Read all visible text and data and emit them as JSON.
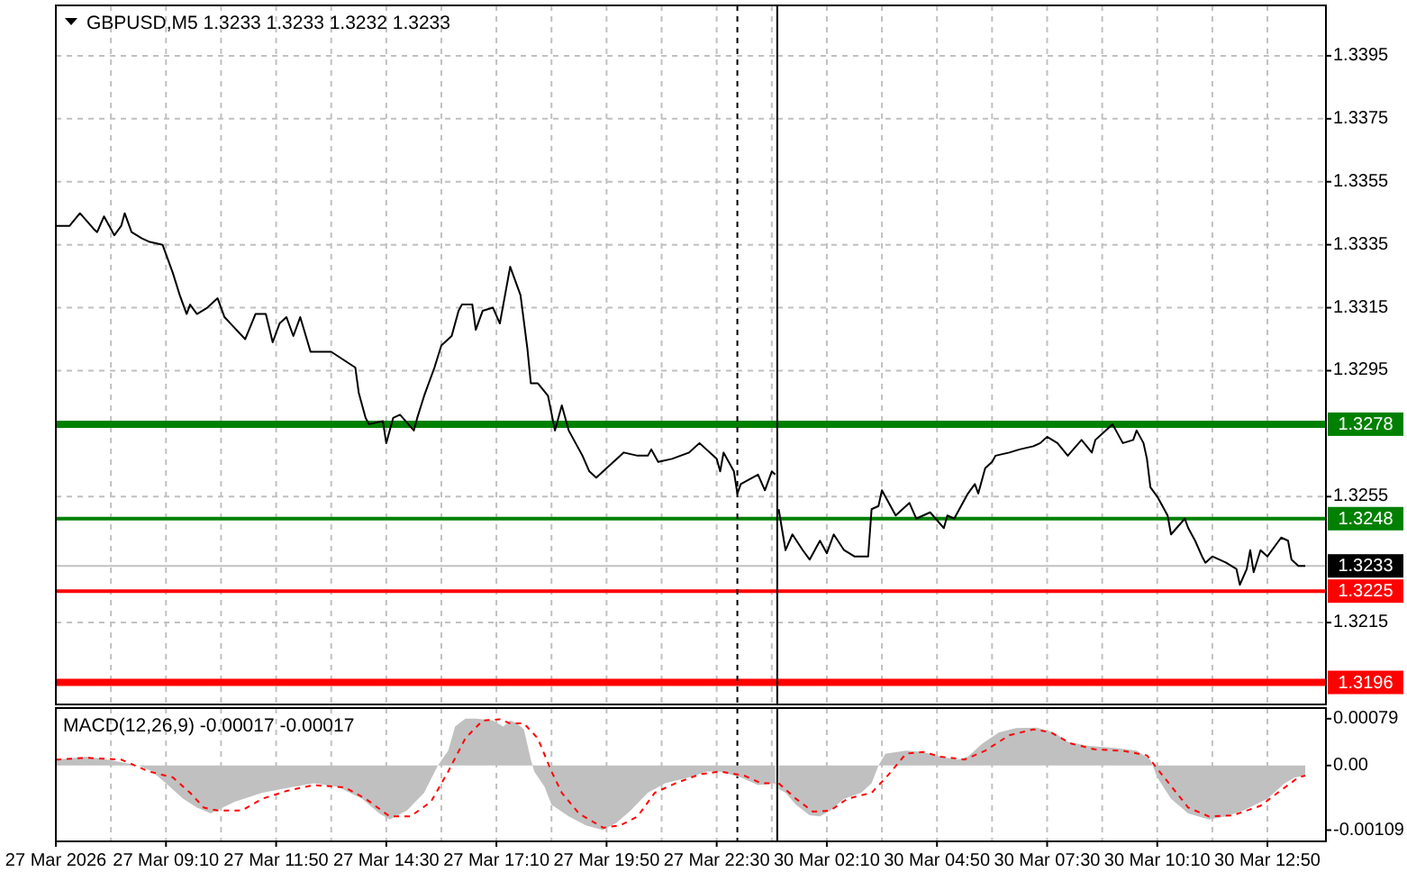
{
  "chart_data": [
    {
      "type": "line",
      "title": "GBPUSD,M5 1.3233 1.3233 1.3232 1.3233",
      "xlim": [
        "2026-03-27T06:30",
        "2026-03-27T23:58"
      ],
      "ylim": [
        1.3189,
        1.3411
      ],
      "xticks": [
        {
          "value": "2026-03-27T07:50",
          "label": null
        },
        {
          "value": "2026-03-27T09:10",
          "label": null
        },
        {
          "value": "2026-03-27T10:30",
          "label": null
        },
        {
          "value": "2026-03-27T11:50",
          "label": null
        },
        {
          "value": "2026-03-27T13:10",
          "label": null
        },
        {
          "value": "2026-03-27T14:30",
          "label": null
        },
        {
          "value": "2026-03-27T15:50",
          "label": null
        },
        {
          "value": "2026-03-27T17:10",
          "label": null
        },
        {
          "value": "2026-03-27T18:30",
          "label": null
        },
        {
          "value": "2026-03-27T19:50",
          "label": null
        },
        {
          "value": "2026-03-27T21:10",
          "label": null
        },
        {
          "value": "2026-03-27T22:30",
          "label": null
        },
        {
          "value": "2026-03-27T23:50",
          "label": null
        }
      ],
      "yticks": [
        {
          "value": 1.3215,
          "label": null
        },
        {
          "value": 1.3255,
          "label": null
        },
        {
          "value": 1.3295,
          "label": null
        },
        {
          "value": 1.3315,
          "label": null
        },
        {
          "value": 1.3335,
          "label": null
        },
        {
          "value": 1.3355,
          "label": null
        },
        {
          "value": 1.3375,
          "label": null
        },
        {
          "value": 1.3395,
          "label": null
        }
      ],
      "tick_labels": false,
      "grid": true,
      "ref_lines": [
        {
          "axis": "y",
          "value": 1.3278,
          "color": "#008000"
        },
        {
          "axis": "y",
          "value": 1.3248,
          "color": "#008000"
        },
        {
          "axis": "y",
          "value": 1.3233,
          "color": "#c0c0c0"
        },
        {
          "axis": "y",
          "value": 1.3225,
          "color": "#ff0000"
        },
        {
          "axis": "y",
          "value": 1.3196,
          "color": "#ff0000"
        },
        {
          "axis": "x",
          "value": "2026-03-27T23:00",
          "color": "#000000",
          "line_style": "dashed"
        }
      ],
      "series": [
        {
          "color": "#000000",
          "x": [
            "2026-03-27T06:30",
            "2026-03-27T06:50",
            "2026-03-27T07:05",
            "2026-03-27T07:25",
            "2026-03-27T07:30",
            "2026-03-27T07:40",
            "2026-03-27T07:55",
            "2026-03-27T08:05",
            "2026-03-27T08:10",
            "2026-03-27T08:20",
            "2026-03-27T08:35",
            "2026-03-27T08:45",
            "2026-03-27T09:05",
            "2026-03-27T09:20",
            "2026-03-27T09:30",
            "2026-03-27T09:40",
            "2026-03-27T09:45",
            "2026-03-27T09:55",
            "2026-03-27T10:10",
            "2026-03-27T10:25",
            "2026-03-27T10:35",
            "2026-03-27T11:05",
            "2026-03-27T11:20",
            "2026-03-27T11:35",
            "2026-03-27T11:45",
            "2026-03-27T11:55",
            "2026-03-27T12:05",
            "2026-03-27T12:15",
            "2026-03-27T12:25",
            "2026-03-27T12:40",
            "2026-03-27T13:10",
            "2026-03-27T13:45",
            "2026-03-27T13:50",
            "2026-03-27T14:00",
            "2026-03-27T14:05",
            "2026-03-27T14:25",
            "2026-03-27T14:30",
            "2026-03-27T14:40",
            "2026-03-27T14:50",
            "2026-03-27T15:10",
            "2026-03-27T15:15",
            "2026-03-27T15:25",
            "2026-03-27T15:40",
            "2026-03-27T15:50",
            "2026-03-27T16:05",
            "2026-03-27T16:15",
            "2026-03-27T16:20",
            "2026-03-27T16:35",
            "2026-03-27T16:40",
            "2026-03-27T16:50",
            "2026-03-27T17:05",
            "2026-03-27T17:15",
            "2026-03-27T17:25",
            "2026-03-27T17:30",
            "2026-03-27T17:45",
            "2026-03-27T17:55",
            "2026-03-27T18:00",
            "2026-03-27T18:10",
            "2026-03-27T18:25",
            "2026-03-27T18:35",
            "2026-03-27T18:45",
            "2026-03-27T18:55",
            "2026-03-27T19:15",
            "2026-03-27T19:25",
            "2026-03-27T19:35",
            "2026-03-27T20:00",
            "2026-03-27T20:15",
            "2026-03-27T20:35",
            "2026-03-27T20:50",
            "2026-03-27T20:55",
            "2026-03-27T21:05",
            "2026-03-27T21:25",
            "2026-03-27T21:50",
            "2026-03-27T22:05",
            "2026-03-27T22:30",
            "2026-03-27T22:35",
            "2026-03-27T22:40",
            "2026-03-27T22:55",
            "2026-03-27T23:00",
            "2026-03-27T23:05",
            "2026-03-27T23:30",
            "2026-03-27T23:40",
            "2026-03-27T23:50",
            "2026-03-27T23:55"
          ],
          "values": [
            1.3341,
            1.3341,
            1.3345,
            1.334,
            1.3339,
            1.3344,
            1.3338,
            1.3341,
            1.3345,
            1.3339,
            1.3337,
            1.3336,
            1.3335,
            1.3326,
            1.3319,
            1.3313,
            1.3316,
            1.3313,
            1.3315,
            1.3318,
            1.3312,
            1.3305,
            1.3313,
            1.3313,
            1.3304,
            1.331,
            1.3312,
            1.3306,
            1.3312,
            1.3301,
            1.3301,
            1.3296,
            1.3288,
            1.328,
            1.3278,
            1.3279,
            1.3272,
            1.328,
            1.3281,
            1.3276,
            1.328,
            1.3287,
            1.3296,
            1.3303,
            1.3306,
            1.3314,
            1.3316,
            1.3316,
            1.3308,
            1.3314,
            1.3315,
            1.331,
            1.3322,
            1.3328,
            1.3319,
            1.3302,
            1.3291,
            1.3291,
            1.3287,
            1.3276,
            1.3284,
            1.3276,
            1.3268,
            1.3263,
            1.3261,
            1.3266,
            1.3269,
            1.3268,
            1.3268,
            1.327,
            1.3266,
            1.3267,
            1.3269,
            1.3272,
            1.3267,
            1.3263,
            1.3269,
            1.3263,
            1.3256,
            1.3259,
            1.3262,
            1.3257,
            1.3263,
            1.3262
          ]
        }
      ]
    },
    {
      "type": "line",
      "xlim": [
        "2026-03-30T00:58",
        "2026-03-30T14:15"
      ],
      "ylim": [
        1.3189,
        1.3411
      ],
      "xticks": [
        {
          "value": "2026-03-30T02:10",
          "label": null
        },
        {
          "value": "2026-03-30T03:30",
          "label": null
        },
        {
          "value": "2026-03-30T04:50",
          "label": null
        },
        {
          "value": "2026-03-30T06:10",
          "label": null
        },
        {
          "value": "2026-03-30T07:30",
          "label": null
        },
        {
          "value": "2026-03-30T08:50",
          "label": null
        },
        {
          "value": "2026-03-30T10:10",
          "label": null
        },
        {
          "value": "2026-03-30T11:30",
          "label": null
        },
        {
          "value": "2026-03-30T12:50",
          "label": null
        }
      ],
      "yticks": [
        1.3215,
        1.3255,
        1.3295,
        1.3315,
        1.3335,
        1.3355,
        1.3375,
        1.3395
      ],
      "tick_labels": "y",
      "grid": true,
      "ref_lines": [
        {
          "axis": "y",
          "value": 1.3278,
          "label": "1.3278",
          "color": "#008000"
        },
        {
          "axis": "y",
          "value": 1.3248,
          "label": "1.3248",
          "color": "#008000"
        },
        {
          "axis": "y",
          "value": 1.3233,
          "label": "1.3233",
          "color": "#c0c0c0"
        },
        {
          "axis": "y",
          "value": 1.3225,
          "label": "1.3225",
          "color": "#ff0000"
        },
        {
          "axis": "y",
          "value": 1.3196,
          "label": "1.3196",
          "color": "#ff0000"
        }
      ],
      "series": [
        {
          "color": "#000000",
          "x": [
            "2026-03-30T01:00",
            "2026-03-30T01:10",
            "2026-03-30T01:20",
            "2026-03-30T01:35",
            "2026-03-30T01:45",
            "2026-03-30T02:00",
            "2026-03-30T02:10",
            "2026-03-30T02:20",
            "2026-03-30T02:35",
            "2026-03-30T02:50",
            "2026-03-30T03:10",
            "2026-03-30T03:15",
            "2026-03-30T03:25",
            "2026-03-30T03:30",
            "2026-03-30T03:40",
            "2026-03-30T03:50",
            "2026-03-30T04:10",
            "2026-03-30T04:20",
            "2026-03-30T04:40",
            "2026-03-30T05:00",
            "2026-03-30T05:05",
            "2026-03-30T05:15",
            "2026-03-30T05:35",
            "2026-03-30T05:45",
            "2026-03-30T05:50",
            "2026-03-30T06:00",
            "2026-03-30T06:10",
            "2026-03-30T06:15",
            "2026-03-30T06:35",
            "2026-03-30T06:50",
            "2026-03-30T07:10",
            "2026-03-30T07:20",
            "2026-03-30T07:30",
            "2026-03-30T07:45",
            "2026-03-30T08:00",
            "2026-03-30T08:20",
            "2026-03-30T08:35",
            "2026-03-30T08:40",
            "2026-03-30T08:50",
            "2026-03-30T09:00",
            "2026-03-30T09:05",
            "2026-03-30T09:10",
            "2026-03-30T09:20",
            "2026-03-30T09:35",
            "2026-03-30T09:40",
            "2026-03-30T09:50",
            "2026-03-30T09:55",
            "2026-03-30T10:00",
            "2026-03-30T10:10",
            "2026-03-30T10:20",
            "2026-03-30T10:25",
            "2026-03-30T10:30",
            "2026-03-30T10:50",
            "2026-03-30T10:55",
            "2026-03-30T11:05",
            "2026-03-30T11:15",
            "2026-03-30T11:20",
            "2026-03-30T11:30",
            "2026-03-30T11:50",
            "2026-03-30T12:05",
            "2026-03-30T12:10",
            "2026-03-30T12:20",
            "2026-03-30T12:25",
            "2026-03-30T12:30",
            "2026-03-30T12:40",
            "2026-03-30T12:50",
            "2026-03-30T13:10",
            "2026-03-30T13:20",
            "2026-03-30T13:25",
            "2026-03-30T13:35",
            "2026-03-30T13:45"
          ],
          "values": [
            1.3251,
            1.3238,
            1.3243,
            1.3238,
            1.3235,
            1.3241,
            1.3237,
            1.3243,
            1.3238,
            1.3236,
            1.3236,
            1.3251,
            1.3252,
            1.3257,
            1.3253,
            1.3249,
            1.3253,
            1.3248,
            1.325,
            1.3245,
            1.3249,
            1.3248,
            1.3256,
            1.3259,
            1.3256,
            1.3264,
            1.3266,
            1.3268,
            1.3269,
            1.327,
            1.3271,
            1.3272,
            1.3274,
            1.3272,
            1.3268,
            1.3273,
            1.3269,
            1.3273,
            1.3275,
            1.3277,
            1.3278,
            1.3276,
            1.3272,
            1.3273,
            1.3276,
            1.3272,
            1.3267,
            1.3258,
            1.3255,
            1.3251,
            1.3249,
            1.3243,
            1.3248,
            1.3245,
            1.3241,
            1.3236,
            1.3234,
            1.3236,
            1.3234,
            1.3232,
            1.3227,
            1.3232,
            1.3238,
            1.3231,
            1.3238,
            1.3236,
            1.3242,
            1.3241,
            1.3235,
            1.3233,
            1.3233
          ]
        }
      ]
    },
    {
      "type": "area",
      "title": "MACD(12,26,9) -0.00017 -0.00017",
      "xlim": [
        "2026-03-27T06:30",
        "2026-03-27T23:58"
      ],
      "ylim": [
        -0.00128,
        0.00097
      ],
      "xticks": [
        {
          "value": "2026-03-27T06:30",
          "label": "27 Mar 2026"
        },
        {
          "value": "2026-03-27T07:50",
          "label": null
        },
        {
          "value": "2026-03-27T09:10",
          "label": "27 Mar 09:10"
        },
        {
          "value": "2026-03-27T10:30",
          "label": null
        },
        {
          "value": "2026-03-27T11:50",
          "label": "27 Mar 11:50"
        },
        {
          "value": "2026-03-27T13:10",
          "label": null
        },
        {
          "value": "2026-03-27T14:30",
          "label": "27 Mar 14:30"
        },
        {
          "value": "2026-03-27T15:50",
          "label": null
        },
        {
          "value": "2026-03-27T17:10",
          "label": "27 Mar 17:10"
        },
        {
          "value": "2026-03-27T18:30",
          "label": null
        },
        {
          "value": "2026-03-27T19:50",
          "label": "27 Mar 19:50"
        },
        {
          "value": "2026-03-27T21:10",
          "label": null
        },
        {
          "value": "2026-03-27T22:30",
          "label": "27 Mar 22:30"
        },
        {
          "value": "2026-03-27T23:50",
          "label": null
        }
      ],
      "tick_labels": "x",
      "grid": "x",
      "line_style": "dashed",
      "ref_lines": [
        {
          "axis": "x",
          "value": "2026-03-27T23:00",
          "color": "#000000",
          "line_style": "dashed"
        }
      ],
      "series": [
        {
          "color": "#c0c0c0",
          "x": [
            "2026-03-27T06:30",
            "2026-03-27T07:15",
            "2026-03-27T07:45",
            "2026-03-27T08:30",
            "2026-03-27T08:50",
            "2026-03-27T09:10",
            "2026-03-27T09:35",
            "2026-03-27T09:55",
            "2026-03-27T10:15",
            "2026-03-27T10:50",
            "2026-03-27T11:30",
            "2026-03-27T12:15",
            "2026-03-27T12:45",
            "2026-03-27T13:20",
            "2026-03-27T13:55",
            "2026-03-27T14:20",
            "2026-03-27T14:35",
            "2026-03-27T15:00",
            "2026-03-27T15:25",
            "2026-03-27T15:45",
            "2026-03-27T16:00",
            "2026-03-27T16:10",
            "2026-03-27T16:25",
            "2026-03-27T16:40",
            "2026-03-27T17:05",
            "2026-03-27T17:20",
            "2026-03-27T17:30",
            "2026-03-27T17:40",
            "2026-03-27T17:50",
            "2026-03-27T18:00",
            "2026-03-27T18:05",
            "2026-03-27T18:20",
            "2026-03-27T18:30",
            "2026-03-27T18:55",
            "2026-03-27T19:20",
            "2026-03-27T19:45",
            "2026-03-27T20:05",
            "2026-03-27T20:25",
            "2026-03-27T20:50",
            "2026-03-27T21:15",
            "2026-03-27T21:50",
            "2026-03-27T22:15",
            "2026-03-27T22:35",
            "2026-03-27T23:05",
            "2026-03-27T23:30",
            "2026-03-27T23:55"
          ],
          "values": [
            0.0001,
            0.00015,
            0.0001,
            0,
            -0.0001,
            -0.0003,
            -0.00056,
            -0.00071,
            -0.00081,
            -0.00061,
            -0.00046,
            -0.00036,
            -0.0003,
            -0.00036,
            -0.00056,
            -0.00081,
            -0.00091,
            -0.00076,
            -0.00046,
            0,
            0.00025,
            0.00066,
            0.00079,
            0.00079,
            0.00076,
            0.00066,
            0.00076,
            0.00071,
            0.00061,
            0.0001,
            -0.0001,
            -0.00036,
            -0.00066,
            -0.00086,
            -0.00101,
            -0.00109,
            -0.00096,
            -0.00076,
            -0.00046,
            -0.0003,
            -0.0002,
            -0.0001,
            -0.0001,
            -0.0002,
            -0.00033,
            -0.0003
          ]
        },
        {
          "type": "line",
          "color": "#ff0000",
          "x": [
            "2026-03-27T06:30",
            "2026-03-27T07:15",
            "2026-03-27T08:05",
            "2026-03-27T08:45",
            "2026-03-27T09:20",
            "2026-03-27T09:45",
            "2026-03-27T10:05",
            "2026-03-27T10:25",
            "2026-03-27T11:00",
            "2026-03-27T11:30",
            "2026-03-27T12:05",
            "2026-03-27T12:45",
            "2026-03-27T13:30",
            "2026-03-27T14:00",
            "2026-03-27T14:35",
            "2026-03-27T15:05",
            "2026-03-27T15:35",
            "2026-03-27T16:00",
            "2026-03-27T16:25",
            "2026-03-27T16:50",
            "2026-03-27T17:15",
            "2026-03-27T17:30",
            "2026-03-27T17:50",
            "2026-03-27T18:10",
            "2026-03-27T18:30",
            "2026-03-27T18:45",
            "2026-03-27T19:10",
            "2026-03-27T19:45",
            "2026-03-27T20:10",
            "2026-03-27T20:35",
            "2026-03-27T21:00",
            "2026-03-27T21:30",
            "2026-03-27T22:05",
            "2026-03-27T22:35",
            "2026-03-27T23:10",
            "2026-03-27T23:35",
            "2026-03-27T23:55"
          ],
          "values": [
            0.0001,
            0.00013,
            0.0001,
            -0.0001,
            -0.0002,
            -0.00046,
            -0.00071,
            -0.00076,
            -0.00076,
            -0.00056,
            -0.00043,
            -0.00033,
            -0.00037,
            -0.00056,
            -0.00086,
            -0.00086,
            -0.00061,
            -0.0001,
            0.00046,
            0.00076,
            0.00078,
            0.00071,
            0.00071,
            0.00046,
            -0.0001,
            -0.00046,
            -0.00081,
            -0.00105,
            -0.00101,
            -0.00086,
            -0.00046,
            -0.0003,
            -0.00015,
            -0.0001,
            -0.00017,
            -0.0003,
            -0.0003
          ]
        }
      ]
    },
    {
      "type": "area",
      "xlim": [
        "2026-03-30T00:58",
        "2026-03-30T14:15"
      ],
      "ylim": [
        -0.00128,
        0.00097
      ],
      "xticks": [
        {
          "value": "2026-03-30T02:10",
          "label": "30 Mar 02:10"
        },
        {
          "value": "2026-03-30T03:30",
          "label": null
        },
        {
          "value": "2026-03-30T04:50",
          "label": "30 Mar 04:50"
        },
        {
          "value": "2026-03-30T06:10",
          "label": null
        },
        {
          "value": "2026-03-30T07:30",
          "label": "30 Mar 07:30"
        },
        {
          "value": "2026-03-30T08:50",
          "label": null
        },
        {
          "value": "2026-03-30T10:10",
          "label": "30 Mar 10:10"
        },
        {
          "value": "2026-03-30T11:30",
          "label": null
        },
        {
          "value": "2026-03-30T12:50",
          "label": "30 Mar 12:50"
        }
      ],
      "yticks": [
        -0.00109,
        {
          "value": 0,
          "label": "0.00"
        },
        0.00079
      ],
      "grid": "x",
      "line_style": "dashed",
      "series": [
        {
          "color": "#c0c0c0",
          "x": [
            "2026-03-30T01:00",
            "2026-03-30T01:10",
            "2026-03-30T01:25",
            "2026-03-30T01:45",
            "2026-03-30T02:00",
            "2026-03-30T02:15",
            "2026-03-30T02:35",
            "2026-03-30T03:00",
            "2026-03-30T03:15",
            "2026-03-30T03:25",
            "2026-03-30T03:35",
            "2026-03-30T04:05",
            "2026-03-30T04:30",
            "2026-03-30T04:55",
            "2026-03-30T05:20",
            "2026-03-30T05:35",
            "2026-03-30T05:55",
            "2026-03-30T06:20",
            "2026-03-30T06:45",
            "2026-03-30T07:15",
            "2026-03-30T07:40",
            "2026-03-30T08:00",
            "2026-03-30T08:30",
            "2026-03-30T09:05",
            "2026-03-30T09:40",
            "2026-03-30T10:00",
            "2026-03-30T10:10",
            "2026-03-30T10:30",
            "2026-03-30T10:55",
            "2026-03-30T11:25",
            "2026-03-30T11:50",
            "2026-03-30T12:15",
            "2026-03-30T12:50",
            "2026-03-30T13:15",
            "2026-03-30T13:30",
            "2026-03-30T13:45"
          ],
          "values": [
            -0.0004,
            -0.00046,
            -0.00066,
            -0.00084,
            -0.00086,
            -0.00076,
            -0.00056,
            -0.00046,
            -0.0003,
            0,
            0.0002,
            0.00025,
            0.00023,
            0.00015,
            0.0001,
            0.00015,
            0.00036,
            0.00056,
            0.00063,
            0.00064,
            0.00056,
            0.0004,
            0.00033,
            0.0003,
            0.00025,
            0.0001,
            -0.0002,
            -0.00056,
            -0.00081,
            -0.00091,
            -0.00086,
            -0.00076,
            -0.00056,
            -0.0003,
            -0.0002,
            -0.00017
          ]
        },
        {
          "type": "line",
          "color": "#ff0000",
          "x": [
            "2026-03-30T01:00",
            "2026-03-30T01:25",
            "2026-03-30T01:50",
            "2026-03-30T02:15",
            "2026-03-30T02:40",
            "2026-03-30T03:15",
            "2026-03-30T03:40",
            "2026-03-30T04:05",
            "2026-03-30T04:30",
            "2026-03-30T04:55",
            "2026-03-30T05:30",
            "2026-03-30T06:00",
            "2026-03-30T06:35",
            "2026-03-30T07:10",
            "2026-03-30T07:35",
            "2026-03-30T08:05",
            "2026-03-30T08:40",
            "2026-03-30T09:20",
            "2026-03-30T09:55",
            "2026-03-30T10:20",
            "2026-03-30T10:55",
            "2026-03-30T11:25",
            "2026-03-30T12:00",
            "2026-03-30T12:40",
            "2026-03-30T13:05",
            "2026-03-30T13:35",
            "2026-03-30T13:45"
          ],
          "values": [
            -0.0003,
            -0.00056,
            -0.00078,
            -0.00076,
            -0.00056,
            -0.00046,
            -0.00015,
            0.0002,
            0.00023,
            0.00015,
            0.0001,
            0.00025,
            0.00051,
            0.00061,
            0.00056,
            0.00037,
            0.00027,
            0.00025,
            0.00017,
            -0.0002,
            -0.00071,
            -0.00086,
            -0.00084,
            -0.00068,
            -0.00046,
            -0.0002,
            -0.00017
          ]
        }
      ]
    }
  ]
}
